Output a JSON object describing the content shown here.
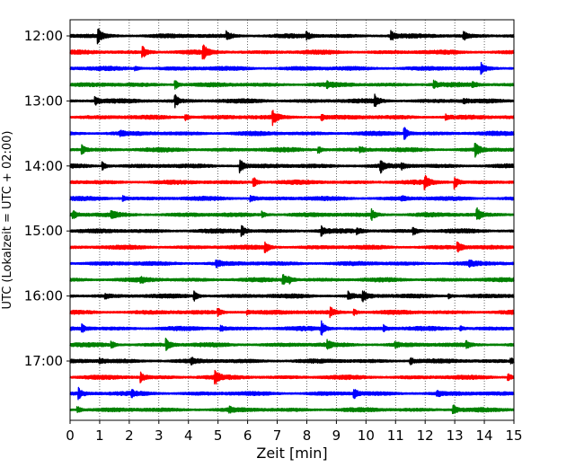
{
  "chart_data": {
    "type": "line",
    "xlabel": "Zeit  [min]",
    "ylabel": "UTC (Lokalzeit = UTC + 02:00)",
    "xlim": [
      0,
      15
    ],
    "x_ticks": [
      "0",
      "1",
      "2",
      "3",
      "4",
      "5",
      "6",
      "7",
      "8",
      "9",
      "10",
      "11",
      "12",
      "13",
      "14",
      "15"
    ],
    "y_ticks": [
      {
        "label": "12:00",
        "trace": 0
      },
      {
        "label": "13:00",
        "trace": 4
      },
      {
        "label": "14:00",
        "trace": 8
      },
      {
        "label": "15:00",
        "trace": 12
      },
      {
        "label": "16:00",
        "trace": 16
      },
      {
        "label": "17:00",
        "trace": 20
      }
    ],
    "grid": "vertical dotted at each minute",
    "trace_count": 24,
    "trace_interval_minutes": 15,
    "trace_colors": [
      "#000000",
      "#ff0000",
      "#0000ff",
      "#008000"
    ],
    "events": [
      [
        [
          0.95,
          1.0
        ],
        [
          5.3,
          0.6
        ],
        [
          8.0,
          0.4
        ],
        [
          10.85,
          0.7
        ],
        [
          13.3,
          0.6
        ]
      ],
      [
        [
          2.45,
          0.8
        ],
        [
          4.5,
          1.0
        ]
      ],
      [
        [
          2.2,
          0.3
        ],
        [
          13.9,
          0.7
        ]
      ],
      [
        [
          3.55,
          0.6
        ],
        [
          8.7,
          0.3
        ],
        [
          12.3,
          0.5
        ],
        [
          13.6,
          0.4
        ]
      ],
      [
        [
          0.85,
          0.6
        ],
        [
          3.55,
          0.8
        ],
        [
          10.3,
          0.8
        ],
        [
          13.3,
          0.3
        ]
      ],
      [
        [
          3.9,
          0.4
        ],
        [
          6.85,
          1.0
        ],
        [
          8.5,
          0.4
        ],
        [
          12.7,
          0.3
        ]
      ],
      [
        [
          1.7,
          0.3
        ],
        [
          11.3,
          0.8
        ]
      ],
      [
        [
          0.4,
          0.6
        ],
        [
          8.4,
          0.5
        ],
        [
          9.8,
          0.4
        ],
        [
          13.7,
          1.0
        ]
      ],
      [
        [
          1.1,
          0.5
        ],
        [
          5.75,
          0.9
        ],
        [
          10.5,
          0.8
        ],
        [
          11.2,
          0.4
        ]
      ],
      [
        [
          6.2,
          0.7
        ],
        [
          12.0,
          0.9
        ],
        [
          13.0,
          0.9
        ]
      ],
      [
        [
          1.8,
          0.3
        ],
        [
          6.1,
          0.5
        ],
        [
          11.2,
          0.3
        ]
      ],
      [
        [
          0.1,
          0.5
        ],
        [
          1.4,
          0.5
        ],
        [
          6.5,
          0.4
        ],
        [
          10.2,
          0.7
        ],
        [
          13.75,
          0.9
        ]
      ],
      [
        [
          5.8,
          0.8
        ],
        [
          8.5,
          0.6
        ],
        [
          9.7,
          0.4
        ],
        [
          11.6,
          0.5
        ]
      ],
      [
        [
          6.6,
          0.7
        ],
        [
          13.1,
          0.7
        ]
      ],
      [
        [
          4.95,
          0.5
        ],
        [
          13.5,
          0.3
        ]
      ],
      [
        [
          2.4,
          0.3
        ],
        [
          7.2,
          0.8
        ],
        [
          7.4,
          0.4
        ]
      ],
      [
        [
          1.2,
          0.3
        ],
        [
          4.2,
          0.6
        ],
        [
          9.4,
          0.6
        ],
        [
          9.9,
          0.7
        ],
        [
          12.8,
          0.3
        ]
      ],
      [
        [
          5.0,
          0.5
        ],
        [
          6.0,
          0.3
        ],
        [
          8.8,
          0.6
        ],
        [
          9.6,
          0.4
        ]
      ],
      [
        [
          0.4,
          0.5
        ],
        [
          5.1,
          0.4
        ],
        [
          8.5,
          0.9
        ],
        [
          10.6,
          0.4
        ],
        [
          13.2,
          0.3
        ]
      ],
      [
        [
          1.4,
          0.4
        ],
        [
          3.25,
          0.8
        ],
        [
          8.7,
          0.5
        ],
        [
          11.0,
          0.3
        ],
        [
          13.4,
          0.4
        ]
      ],
      [
        [
          1.0,
          0.3
        ],
        [
          4.1,
          0.4
        ],
        [
          11.5,
          0.5
        ],
        [
          14.9,
          0.4
        ]
      ],
      [
        [
          2.4,
          0.7
        ],
        [
          4.9,
          1.0
        ],
        [
          14.8,
          0.6
        ]
      ],
      [
        [
          0.3,
          0.7
        ],
        [
          2.1,
          0.3
        ],
        [
          9.6,
          0.6
        ],
        [
          12.4,
          0.4
        ]
      ],
      [
        [
          0.25,
          0.5
        ],
        [
          5.4,
          0.3
        ],
        [
          12.95,
          0.7
        ]
      ]
    ]
  }
}
